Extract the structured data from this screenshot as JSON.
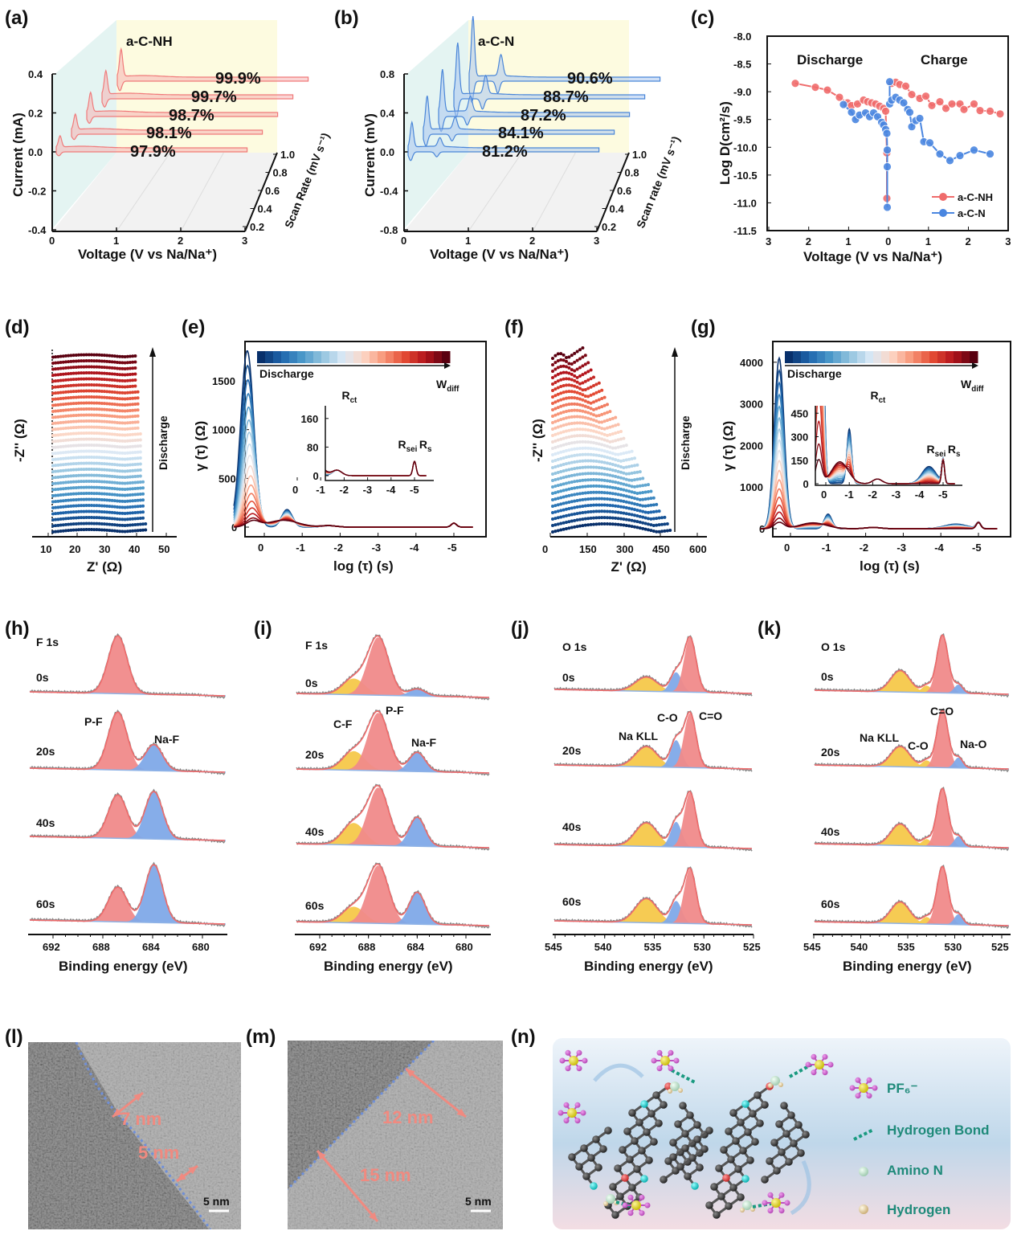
{
  "figure": {
    "panel_labels": [
      "(a)",
      "(b)",
      "(c)",
      "(d)",
      "(e)",
      "(f)",
      "(g)",
      "(h)",
      "(i)",
      "(j)",
      "(k)",
      "(l)",
      "(m)",
      "(n)"
    ]
  },
  "chart_data": [
    {
      "panel": "a",
      "type": "line",
      "title": "a-C-NH",
      "xlabel": "Voltage (V vs Na/Na⁺)",
      "ylabel": "Current (mA)",
      "zlabel": "Scan Rate (mV s⁻¹)",
      "xlim": [
        0,
        3
      ],
      "ylim": [
        -0.4,
        0.4
      ],
      "xticks": [
        "0",
        "1",
        "2",
        "3"
      ],
      "yticks": [
        "0.4",
        "0.2",
        "0.0",
        "-0.2",
        "-0.4"
      ],
      "zticks": [
        "0.2",
        "0.4",
        "0.6",
        "0.8",
        "1.0"
      ],
      "scan_rates": [
        0.2,
        0.4,
        0.6,
        0.8,
        1.0
      ],
      "labels": [
        "97.9%",
        "98.1%",
        "98.7%",
        "99.7%",
        "99.9%"
      ],
      "colors": {
        "line": "#f07a7a",
        "fill": "#f6b3b3"
      }
    },
    {
      "panel": "b",
      "type": "line",
      "title": "a-C-N",
      "xlabel": "Voltage (V vs Na/Na⁺)",
      "ylabel": "Current (mV)",
      "zlabel": "Scan rate (mV s⁻¹)",
      "xlim": [
        0,
        3
      ],
      "ylim": [
        -0.8,
        0.8
      ],
      "xticks": [
        "0",
        "1",
        "2",
        "3"
      ],
      "yticks": [
        "0.8",
        "0.4",
        "0.0",
        "-0.4",
        "-0.8"
      ],
      "zticks": [
        "0.2",
        "0.4",
        "0.6",
        "0.8",
        "1.0"
      ],
      "scan_rates": [
        0.2,
        0.4,
        0.6,
        0.8,
        1.0
      ],
      "labels": [
        "81.2%",
        "84.1%",
        "87.2%",
        "88.7%",
        "90.6%"
      ],
      "colors": {
        "line": "#4a86d8",
        "fill": "#a9c6f0"
      }
    },
    {
      "panel": "c",
      "type": "scatter",
      "xlabel": "Voltage (V vs Na/Na⁺)",
      "ylabel": "Log D(cm²/s)",
      "ylim": [
        -11.5,
        -8.0
      ],
      "xticks": [
        "3",
        "2",
        "1",
        "0",
        "1",
        "2",
        "3"
      ],
      "yticks": [
        "-8.0",
        "-8.5",
        "-9.0",
        "-9.5",
        "-10.0",
        "-10.5",
        "-11.0",
        "-11.5"
      ],
      "annotations": [
        "Discharge",
        "Charge"
      ],
      "legend": "bottom-right",
      "series": [
        {
          "name": "a-C-NH",
          "color": "#ef6b6b",
          "discharge": {
            "x": [
              2.3,
              1.8,
              1.5,
              1.2,
              1.0,
              0.9,
              0.75,
              0.6,
              0.5,
              0.4,
              0.3,
              0.2,
              0.1,
              0.05,
              0.02,
              0.02
            ],
            "y": [
              -8.85,
              -8.92,
              -8.97,
              -9.1,
              -9.2,
              -9.25,
              -9.22,
              -9.15,
              -9.18,
              -9.2,
              -9.22,
              -9.26,
              -9.3,
              -9.35,
              -10.1,
              -10.92
            ]
          },
          "charge": {
            "x": [
              0.1,
              0.2,
              0.3,
              0.45,
              0.6,
              0.8,
              0.95,
              1.1,
              1.3,
              1.45,
              1.6,
              1.8,
              1.9,
              2.15,
              2.3,
              2.55,
              2.8
            ],
            "y": [
              -8.85,
              -8.83,
              -8.87,
              -8.9,
              -9.05,
              -9.12,
              -9.08,
              -9.25,
              -9.18,
              -9.3,
              -9.22,
              -9.22,
              -9.32,
              -9.22,
              -9.34,
              -9.35,
              -9.4
            ]
          }
        },
        {
          "name": "a-C-N",
          "color": "#4a86e0",
          "discharge": {
            "x": [
              1.1,
              0.9,
              0.8,
              0.7,
              0.55,
              0.45,
              0.35,
              0.25,
              0.15,
              0.1,
              0.05,
              0.02,
              0.01,
              0.01,
              0.01
            ],
            "y": [
              -9.23,
              -9.37,
              -9.5,
              -9.42,
              -9.38,
              -9.45,
              -9.38,
              -9.45,
              -9.55,
              -9.6,
              -9.68,
              -9.75,
              -10.05,
              -10.35,
              -11.08
            ]
          },
          "charge": {
            "x": [
              0.05,
              0.05,
              0.1,
              0.2,
              0.3,
              0.4,
              0.5,
              0.55,
              0.6,
              0.7,
              0.8,
              0.9,
              1.05,
              1.3,
              1.55,
              1.8,
              2.15,
              2.55
            ],
            "y": [
              -8.82,
              -9.22,
              -9.15,
              -9.1,
              -9.15,
              -9.2,
              -9.32,
              -9.37,
              -9.63,
              -9.52,
              -9.48,
              -9.9,
              -9.92,
              -10.12,
              -10.24,
              -10.15,
              -10.05,
              -10.12
            ]
          }
        }
      ]
    },
    {
      "panel": "d",
      "type": "scatter",
      "xlabel": "Z' (Ω)",
      "ylabel": "-Z'' (Ω)",
      "xticks": [
        "10",
        "20",
        "30",
        "40",
        "50"
      ],
      "xlim": [
        10,
        52
      ],
      "arrow_label": "Discharge"
    },
    {
      "panel": "e",
      "type": "line",
      "xlabel": "log (τ) (s)",
      "ylabel": "γ (τ) (Ω)",
      "xticks": [
        "-5",
        "-4",
        "-3",
        "-2",
        "-1",
        "0"
      ],
      "yticks": [
        "0",
        "500",
        "1000",
        "1500"
      ],
      "xlim": [
        -5.5,
        0.8
      ],
      "ylim": [
        -100,
        1850
      ],
      "colorbar_label": "Discharge",
      "annotations": {
        "w": {
          "main": "W",
          "sub": "diff"
        },
        "rct": {
          "main": "R",
          "sub": "ct"
        },
        "rs": {
          "main": "R",
          "sub": "s"
        },
        "rsei": {
          "main": "R",
          "sub": "sei"
        }
      },
      "inset": {
        "xticks": [
          "-5",
          "-4",
          "-3",
          "-2",
          "-1",
          "0"
        ],
        "yticks": [
          "0",
          "80",
          "160"
        ],
        "ylim": [
          -15,
          200
        ]
      },
      "peak_max_blue": 1780
    },
    {
      "panel": "f",
      "type": "scatter",
      "xlabel": "Z' (Ω)",
      "ylabel": "-Z'' (Ω)",
      "xticks": [
        "0",
        "150",
        "300",
        "450",
        "600"
      ],
      "xlim": [
        0,
        600
      ],
      "arrow_label": "Discharge"
    },
    {
      "panel": "g",
      "type": "line",
      "xlabel": "log (τ) (s)",
      "ylabel": "γ (τ) (Ω)",
      "xticks": [
        "-5",
        "-4",
        "-3",
        "-2",
        "-1",
        "0"
      ],
      "yticks": [
        "0",
        "1000",
        "2000",
        "3000",
        "4000"
      ],
      "xlim": [
        -5.5,
        0.8
      ],
      "ylim": [
        -250,
        4300
      ],
      "colorbar_label": "Discharge",
      "annotations": {
        "w": {
          "main": "W",
          "sub": "diff"
        },
        "rct": {
          "main": "R",
          "sub": "ct"
        },
        "rs": {
          "main": "R",
          "sub": "s"
        },
        "rsei": {
          "main": "R",
          "sub": "sei"
        }
      },
      "inset": {
        "xticks": [
          "-5",
          "-4",
          "-3",
          "-2",
          "-1",
          "0"
        ],
        "yticks": [
          "0",
          "150",
          "300",
          "450"
        ],
        "ylim": [
          -30,
          480
        ]
      },
      "peak_max_blue": 4050
    },
    {
      "panel": "h",
      "type": "area",
      "title": "F 1s",
      "xlabel": "Binding energy (eV)",
      "xticks": [
        "692",
        "688",
        "684",
        "680"
      ],
      "xlim": [
        694,
        678
      ],
      "spectra": [
        "0s",
        "20s",
        "40s",
        "60s"
      ],
      "peaks": [
        {
          "name": "P-F",
          "position": 686.8,
          "color": "#f08a8a"
        },
        {
          "name": "Na-F",
          "position": 683.9,
          "color": "#7fa9e8"
        }
      ],
      "relative_intensity": [
        [
          1.0,
          0.0
        ],
        [
          1.0,
          0.45
        ],
        [
          0.75,
          0.82
        ],
        [
          0.6,
          1.0
        ]
      ]
    },
    {
      "panel": "i",
      "type": "area",
      "title": "F 1s",
      "xlabel": "Binding energy (eV)",
      "xticks": [
        "692",
        "688",
        "684",
        "680"
      ],
      "xlim": [
        694,
        678
      ],
      "spectra": [
        "0s",
        "20s",
        "40s",
        "60s"
      ],
      "peaks": [
        {
          "name": "C-F",
          "position": 689.2,
          "color": "#f5c84a"
        },
        {
          "name": "P-F",
          "position": 687.2,
          "color": "#f08a8a"
        },
        {
          "name": "Na-F",
          "position": 684.0,
          "color": "#7fa9e8"
        }
      ],
      "relative_intensity": [
        [
          0.28,
          1.0,
          0.12
        ],
        [
          0.33,
          1.0,
          0.33
        ],
        [
          0.38,
          1.0,
          0.5
        ],
        [
          0.28,
          1.0,
          0.55
        ]
      ]
    },
    {
      "panel": "j",
      "type": "area",
      "title": "O 1s",
      "xlabel": "Binding energy (eV)",
      "xticks": [
        "545",
        "540",
        "535",
        "530",
        "525"
      ],
      "xlim": [
        545,
        525
      ],
      "spectra": [
        "0s",
        "20s",
        "40s",
        "60s"
      ],
      "peaks": [
        {
          "name": "Na KLL",
          "position": 535.8,
          "color": "#f5c84a"
        },
        {
          "name": "C-O",
          "position": 532.8,
          "color": "#7fa9e8"
        },
        {
          "name": "C=O",
          "position": 531.4,
          "color": "#f08a8a"
        }
      ],
      "relative_intensity": [
        [
          0.26,
          0.36,
          1.0
        ],
        [
          0.37,
          0.5,
          1.0
        ],
        [
          0.43,
          0.46,
          1.0
        ],
        [
          0.44,
          0.41,
          1.0
        ]
      ]
    },
    {
      "panel": "k",
      "type": "area",
      "title": "O 1s",
      "xlabel": "Binding energy (eV)",
      "xticks": [
        "545",
        "540",
        "535",
        "530",
        "525"
      ],
      "xlim": [
        545,
        525
      ],
      "spectra": [
        "0s",
        "20s",
        "40s",
        "60s"
      ],
      "peaks": [
        {
          "name": "Na KLL",
          "position": 535.8,
          "color": "#f5c84a"
        },
        {
          "name": "C-O",
          "position": 533.0,
          "color": "#f5c84a"
        },
        {
          "name": "C=O",
          "position": 531.3,
          "color": "#f08a8a"
        },
        {
          "name": "Na-O",
          "position": 529.6,
          "color": "#7fa9e8"
        }
      ],
      "relative_intensity": [
        [
          0.37,
          0.12,
          1.0,
          0.15
        ],
        [
          0.35,
          0.12,
          1.0,
          0.18
        ],
        [
          0.37,
          0.12,
          1.0,
          0.18
        ],
        [
          0.37,
          0.12,
          1.0,
          0.18
        ]
      ]
    }
  ],
  "images": {
    "l": {
      "measurements": [
        "7 nm",
        "5 nm"
      ],
      "scale_bar": "5 nm"
    },
    "m": {
      "measurements": [
        "12 nm",
        "15 nm"
      ],
      "scale_bar": "5 nm"
    }
  },
  "schematic": {
    "legend": [
      {
        "label": "PF₆⁻",
        "icon": "pf6-icon"
      },
      {
        "label": "Hydrogen Bond",
        "icon": "hydrogen-bond-icon"
      },
      {
        "label": "Amino N",
        "icon": "amino-n-icon"
      },
      {
        "label": "Hydrogen",
        "icon": "hydrogen-icon"
      }
    ]
  }
}
